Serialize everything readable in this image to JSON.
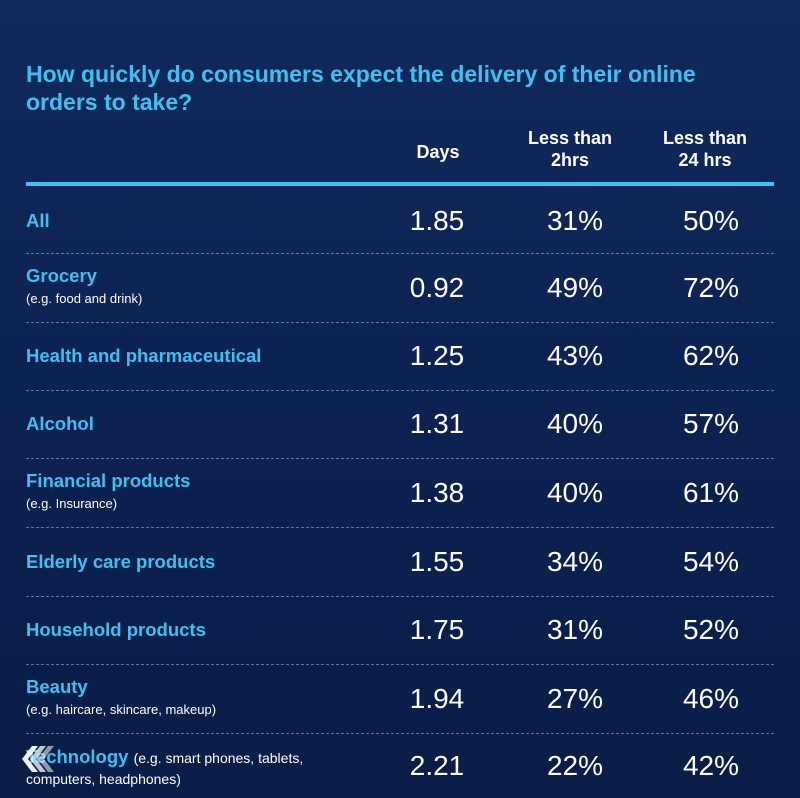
{
  "chart_data": {
    "type": "table",
    "title": "How quickly do consumers expect the delivery of their online orders to take?",
    "columns": [
      "Days",
      "Less than 2hrs",
      "Less than 24 hrs"
    ],
    "column_lines": [
      [
        "Days"
      ],
      [
        "Less than",
        "2hrs"
      ],
      [
        "Less than",
        "24 hrs"
      ]
    ],
    "rows": [
      {
        "label": "All",
        "sub": "",
        "days": "1.85",
        "lt2": "31%",
        "lt24": "50%"
      },
      {
        "label": "Grocery",
        "sub": "(e.g. food and drink)",
        "days": "0.92",
        "lt2": "49%",
        "lt24": "72%"
      },
      {
        "label": "Health and pharmaceutical",
        "sub": "",
        "days": "1.25",
        "lt2": "43%",
        "lt24": "62%"
      },
      {
        "label": "Alcohol",
        "sub": "",
        "days": "1.31",
        "lt2": "40%",
        "lt24": "57%"
      },
      {
        "label": "Financial products",
        "sub": "(e.g. Insurance)",
        "days": "1.38",
        "lt2": "40%",
        "lt24": "61%"
      },
      {
        "label": "Elderly care products",
        "sub": "",
        "days": "1.55",
        "lt2": "34%",
        "lt24": "54%"
      },
      {
        "label": "Household products",
        "sub": "",
        "days": "1.75",
        "lt2": "31%",
        "lt24": "52%"
      },
      {
        "label": "Beauty",
        "sub": "(e.g. haircare, skincare, makeup)",
        "days": "1.94",
        "lt2": "27%",
        "lt24": "46%"
      },
      {
        "label": "Technology",
        "sub": "(e.g. smart phones, tablets, computers, headphones)",
        "days": "2.21",
        "lt2": "22%",
        "lt24": "42%"
      }
    ]
  },
  "colors": {
    "accent": "#3fc0f0",
    "text": "#ffffff",
    "background": "#0c2252"
  },
  "logo": {
    "icon": "layered-chevron-logo-icon"
  }
}
